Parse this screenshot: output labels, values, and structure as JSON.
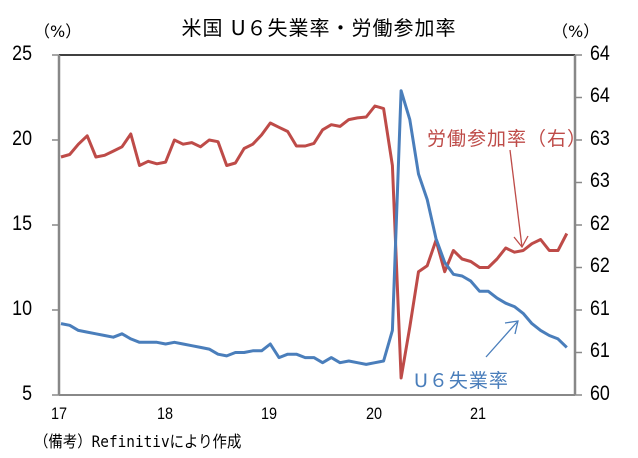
{
  "chart_data": {
    "type": "line",
    "title": "米国 U６失業率・労働参加率",
    "left_axis": {
      "unit_label": "（%）",
      "range": [
        5,
        25
      ],
      "ticks": [
        25,
        20,
        15,
        10,
        5
      ]
    },
    "right_axis": {
      "unit_label": "（%）",
      "range": [
        60,
        64
      ],
      "ticks": [
        64.0,
        63.5,
        63.0,
        62.5,
        62.0,
        61.5,
        61.0,
        60.5,
        60.0
      ],
      "tick_labels": [
        "64",
        "64",
        "63",
        "63",
        "62",
        "62",
        "61",
        "61",
        "60"
      ]
    },
    "x_axis": {
      "tick_labels": [
        "17",
        "18",
        "19",
        "20",
        "21"
      ],
      "start": "2017-01",
      "frequency": "monthly"
    },
    "series": [
      {
        "name": "U６失業率",
        "axis": "left",
        "color": "#4a7ebb",
        "values": [
          9.2,
          9.1,
          8.8,
          8.7,
          8.6,
          8.5,
          8.4,
          8.6,
          8.3,
          8.1,
          8.1,
          8.1,
          8.0,
          8.1,
          8.0,
          7.9,
          7.8,
          7.7,
          7.4,
          7.3,
          7.5,
          7.5,
          7.6,
          7.6,
          8.0,
          7.2,
          7.4,
          7.4,
          7.2,
          7.2,
          6.9,
          7.2,
          6.9,
          7.0,
          6.9,
          6.8,
          6.9,
          7.0,
          8.8,
          22.9,
          21.2,
          18.0,
          16.5,
          14.2,
          12.8,
          12.1,
          12.0,
          11.7,
          11.1,
          11.1,
          10.7,
          10.4,
          10.2,
          9.8,
          9.2,
          8.8,
          8.5,
          8.3,
          7.8
        ]
      },
      {
        "name": "労働参加率（右）",
        "axis": "right",
        "color": "#be4b48",
        "values": [
          62.8,
          62.83,
          62.95,
          63.05,
          62.8,
          62.82,
          62.87,
          62.92,
          63.07,
          62.7,
          62.75,
          62.72,
          62.74,
          63.0,
          62.95,
          62.97,
          62.92,
          63.0,
          62.98,
          62.7,
          62.73,
          62.9,
          62.95,
          63.06,
          63.2,
          63.15,
          63.1,
          62.93,
          62.93,
          62.96,
          63.12,
          63.18,
          63.16,
          63.24,
          63.26,
          63.27,
          63.4,
          63.37,
          62.7,
          60.2,
          60.8,
          61.45,
          61.52,
          61.82,
          61.45,
          61.7,
          61.6,
          61.57,
          61.5,
          61.5,
          61.6,
          61.73,
          61.68,
          61.7,
          61.78,
          61.83,
          61.7,
          61.7,
          61.9
        ]
      }
    ],
    "annotations": [
      {
        "text": "労働参加率（右）",
        "color": "#be4b48"
      },
      {
        "text": "U６失業率",
        "color": "#4a7ebb"
      }
    ],
    "grid": false,
    "legend": "inline annotations"
  },
  "labels": {
    "title": "米国 U６失業率・労働参加率",
    "left_unit": "（%）",
    "right_unit": "（%）",
    "left_ticks": [
      "25",
      "20",
      "15",
      "10",
      "5"
    ],
    "right_ticks": [
      "64",
      "64",
      "63",
      "63",
      "62",
      "62",
      "61",
      "61",
      "60"
    ],
    "x_ticks": [
      "17",
      "18",
      "19",
      "20",
      "21"
    ],
    "annotation_lfpr": "労働参加率（右）",
    "annotation_u6": "U６失業率",
    "note": "（備考）Refinitivにより作成"
  }
}
